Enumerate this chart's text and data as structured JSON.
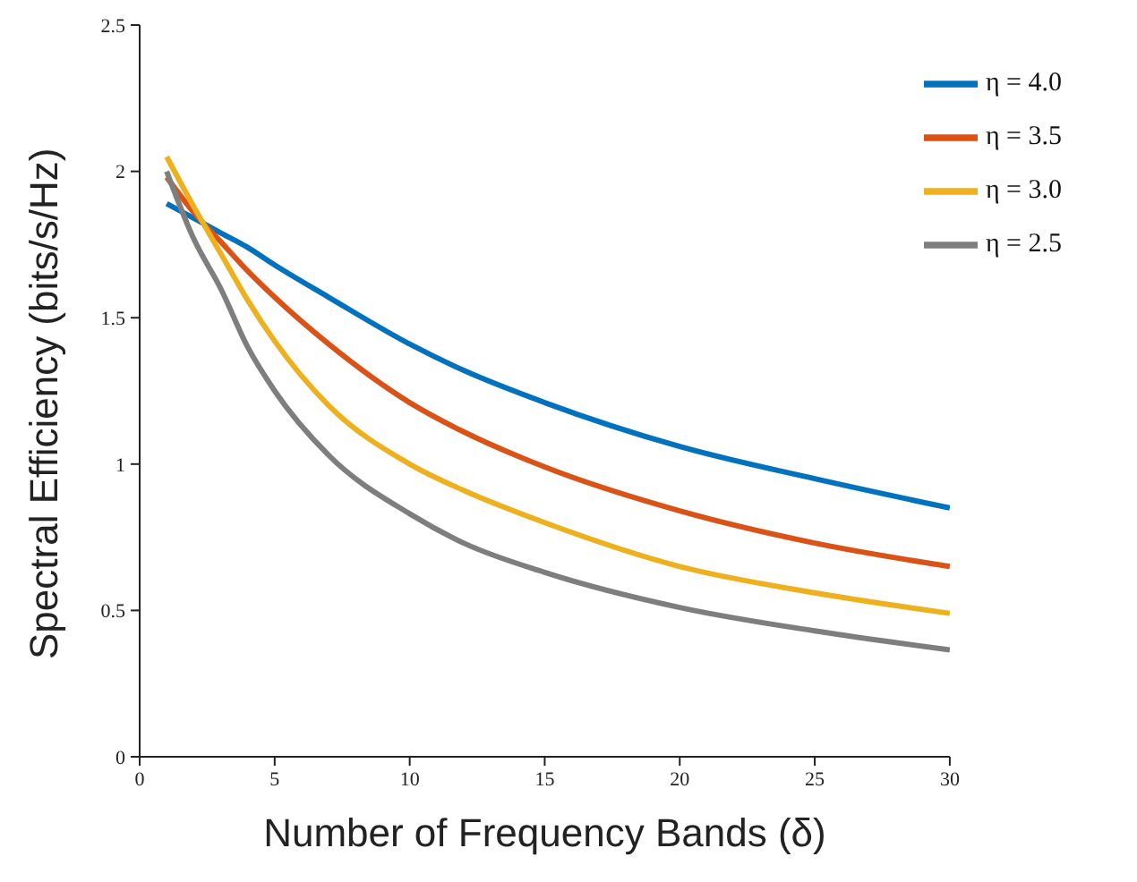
{
  "chart_data": {
    "type": "line",
    "xlabel": "Number of Frequency Bands (δ)",
    "ylabel": "Spectral Efficiency (bits/s/Hz)",
    "x": [
      1,
      2,
      3,
      4,
      5,
      7,
      10,
      12,
      15,
      20,
      25,
      30
    ],
    "series": [
      {
        "name": "η = 4.0",
        "color": "#0072bd",
        "values": [
          1.89,
          1.84,
          1.79,
          1.74,
          1.68,
          1.57,
          1.41,
          1.32,
          1.21,
          1.06,
          0.95,
          0.85
        ]
      },
      {
        "name": "η = 3.5",
        "color": "#d95319",
        "values": [
          1.98,
          1.86,
          1.76,
          1.66,
          1.57,
          1.41,
          1.21,
          1.11,
          0.99,
          0.84,
          0.73,
          0.65
        ]
      },
      {
        "name": "η = 3.0",
        "color": "#edb120",
        "values": [
          2.05,
          1.88,
          1.72,
          1.56,
          1.42,
          1.2,
          1.0,
          0.91,
          0.8,
          0.65,
          0.56,
          0.49
        ]
      },
      {
        "name": "η = 2.5",
        "color": "#7e7e7e",
        "values": [
          2.0,
          1.77,
          1.6,
          1.4,
          1.25,
          1.03,
          0.83,
          0.73,
          0.63,
          0.51,
          0.43,
          0.365
        ]
      }
    ],
    "xlim": [
      0,
      30
    ],
    "xticks": [
      0,
      5,
      10,
      15,
      20,
      25,
      30
    ],
    "ylim": [
      0,
      2.5
    ],
    "yticks": [
      0,
      0.5,
      1,
      1.5,
      2,
      2.5
    ],
    "grid": false,
    "legend": "top right",
    "marker": "none",
    "line_style": "solid"
  }
}
